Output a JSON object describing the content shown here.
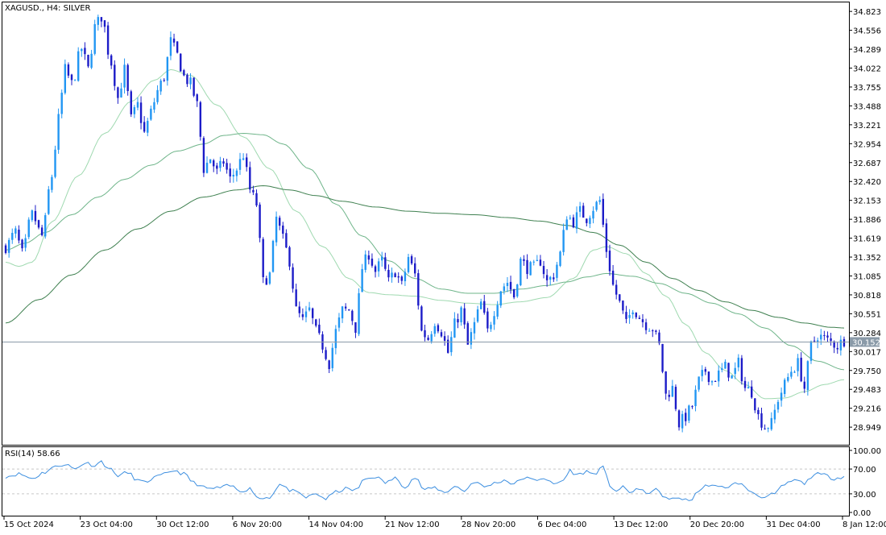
{
  "chart_data": {
    "type": "candlestick",
    "symbol_label": "XAGUSD., H4:  SILVER",
    "indicator_label": "RSI(14) 58.66",
    "current_price_label": "30.152",
    "price_axis_ticks": [
      "34.823",
      "34.556",
      "34.289",
      "34.022",
      "33.755",
      "33.488",
      "33.221",
      "32.954",
      "32.687",
      "32.420",
      "32.153",
      "31.886",
      "31.619",
      "31.352",
      "31.085",
      "30.818",
      "30.551",
      "30.284",
      "30.017",
      "29.750",
      "29.483",
      "29.216",
      "28.949"
    ],
    "rsi_axis_ticks": [
      "100.00",
      "70.00",
      "30.00",
      "0.00"
    ],
    "time_axis_labels": [
      "15 Oct 2024",
      "23 Oct 04:00",
      "30 Oct 12:00",
      "6 Nov 20:00",
      "14 Nov 04:00",
      "21 Nov 12:00",
      "28 Nov 20:00",
      "6 Dec 04:00",
      "13 Dec 12:00",
      "20 Dec 20:00",
      "31 Dec 04:00",
      "8 Jan 12:00"
    ],
    "ylim": [
      28.7,
      34.95
    ],
    "rsi_ylim": [
      0,
      100
    ],
    "rsi_levels": [
      70,
      30
    ],
    "price_anchors": [
      [
        0,
        31.5
      ],
      [
        3,
        31.7
      ],
      [
        5,
        31.4
      ],
      [
        8,
        31.95
      ],
      [
        11,
        31.65
      ],
      [
        14,
        32.5
      ],
      [
        16,
        33.3
      ],
      [
        18,
        34.0
      ],
      [
        20,
        33.8
      ],
      [
        23,
        34.3
      ],
      [
        25,
        34.0
      ],
      [
        27,
        34.6
      ],
      [
        29,
        34.75
      ],
      [
        32,
        34.1
      ],
      [
        34,
        33.6
      ],
      [
        36,
        34.0
      ],
      [
        38,
        33.3
      ],
      [
        40,
        33.5
      ],
      [
        42,
        33.1
      ],
      [
        44,
        33.4
      ],
      [
        46,
        33.7
      ],
      [
        48,
        33.9
      ],
      [
        50,
        34.4
      ],
      [
        52,
        34.2
      ],
      [
        54,
        33.9
      ],
      [
        56,
        33.8
      ],
      [
        58,
        33.5
      ],
      [
        60,
        32.6
      ],
      [
        62,
        32.75
      ],
      [
        64,
        32.55
      ],
      [
        66,
        32.7
      ],
      [
        68,
        32.45
      ],
      [
        70,
        32.6
      ],
      [
        72,
        32.8
      ],
      [
        74,
        32.3
      ],
      [
        76,
        32.1
      ],
      [
        78,
        31.0
      ],
      [
        80,
        31.1
      ],
      [
        82,
        31.9
      ],
      [
        84,
        31.6
      ],
      [
        86,
        31.3
      ],
      [
        88,
        30.6
      ],
      [
        90,
        30.45
      ],
      [
        92,
        30.6
      ],
      [
        94,
        30.3
      ],
      [
        96,
        30.1
      ],
      [
        98,
        29.85
      ],
      [
        100,
        30.3
      ],
      [
        102,
        30.6
      ],
      [
        104,
        30.6
      ],
      [
        106,
        30.35
      ],
      [
        108,
        31.2
      ],
      [
        110,
        31.4
      ],
      [
        112,
        31.15
      ],
      [
        114,
        31.3
      ],
      [
        116,
        31.0
      ],
      [
        118,
        31.15
      ],
      [
        120,
        30.95
      ],
      [
        122,
        31.35
      ],
      [
        124,
        31.1
      ],
      [
        126,
        30.3
      ],
      [
        128,
        30.2
      ],
      [
        130,
        30.45
      ],
      [
        132,
        30.3
      ],
      [
        134,
        30.0
      ],
      [
        136,
        30.4
      ],
      [
        138,
        30.6
      ],
      [
        140,
        30.1
      ],
      [
        142,
        30.4
      ],
      [
        144,
        30.7
      ],
      [
        146,
        30.3
      ],
      [
        148,
        30.6
      ],
      [
        150,
        30.9
      ],
      [
        152,
        31.0
      ],
      [
        154,
        30.8
      ],
      [
        156,
        31.3
      ],
      [
        158,
        31.2
      ],
      [
        160,
        31.2
      ],
      [
        162,
        31.3
      ],
      [
        164,
        31.0
      ],
      [
        166,
        31.1
      ],
      [
        168,
        31.4
      ],
      [
        170,
        31.95
      ],
      [
        172,
        31.85
      ],
      [
        174,
        32.0
      ],
      [
        176,
        31.9
      ],
      [
        178,
        32.05
      ],
      [
        180,
        32.15
      ],
      [
        182,
        31.45
      ],
      [
        184,
        30.95
      ],
      [
        186,
        30.7
      ],
      [
        188,
        30.4
      ],
      [
        190,
        30.65
      ],
      [
        192,
        30.5
      ],
      [
        194,
        30.4
      ],
      [
        196,
        30.35
      ],
      [
        198,
        30.1
      ],
      [
        200,
        29.4
      ],
      [
        202,
        29.5
      ],
      [
        204,
        29.0
      ],
      [
        206,
        29.1
      ],
      [
        208,
        29.25
      ],
      [
        210,
        29.6
      ],
      [
        212,
        29.75
      ],
      [
        214,
        29.6
      ],
      [
        216,
        29.7
      ],
      [
        218,
        29.8
      ],
      [
        220,
        29.65
      ],
      [
        222,
        29.85
      ],
      [
        224,
        29.5
      ],
      [
        226,
        29.45
      ],
      [
        228,
        29.1
      ],
      [
        230,
        28.95
      ],
      [
        232,
        29.0
      ],
      [
        234,
        29.35
      ],
      [
        236,
        29.55
      ],
      [
        238,
        29.75
      ],
      [
        240,
        29.85
      ],
      [
        242,
        29.5
      ],
      [
        244,
        30.1
      ],
      [
        246,
        30.25
      ],
      [
        248,
        30.2
      ],
      [
        250,
        30.15
      ],
      [
        252,
        30.1
      ],
      [
        254,
        30.18
      ]
    ],
    "rsi_anchors": [
      [
        0,
        58
      ],
      [
        4,
        62
      ],
      [
        8,
        55
      ],
      [
        12,
        65
      ],
      [
        14,
        72
      ],
      [
        18,
        78
      ],
      [
        21,
        70
      ],
      [
        24,
        80
      ],
      [
        27,
        76
      ],
      [
        29,
        82
      ],
      [
        31,
        72
      ],
      [
        34,
        60
      ],
      [
        37,
        64
      ],
      [
        40,
        52
      ],
      [
        42,
        48
      ],
      [
        45,
        56
      ],
      [
        48,
        61
      ],
      [
        51,
        68
      ],
      [
        54,
        62
      ],
      [
        57,
        48
      ],
      [
        60,
        40
      ],
      [
        62,
        38
      ],
      [
        65,
        40
      ],
      [
        68,
        43
      ],
      [
        71,
        35
      ],
      [
        74,
        38
      ],
      [
        77,
        22
      ],
      [
        80,
        25
      ],
      [
        83,
        45
      ],
      [
        86,
        36
      ],
      [
        89,
        30
      ],
      [
        91,
        24
      ],
      [
        94,
        30
      ],
      [
        97,
        22
      ],
      [
        100,
        33
      ],
      [
        103,
        38
      ],
      [
        106,
        36
      ],
      [
        109,
        54
      ],
      [
        112,
        58
      ],
      [
        115,
        48
      ],
      [
        118,
        55
      ],
      [
        121,
        42
      ],
      [
        124,
        56
      ],
      [
        127,
        36
      ],
      [
        130,
        40
      ],
      [
        133,
        32
      ],
      [
        136,
        42
      ],
      [
        139,
        35
      ],
      [
        142,
        50
      ],
      [
        145,
        41
      ],
      [
        148,
        47
      ],
      [
        151,
        52
      ],
      [
        154,
        46
      ],
      [
        157,
        56
      ],
      [
        160,
        52
      ],
      [
        163,
        56
      ],
      [
        166,
        45
      ],
      [
        169,
        52
      ],
      [
        171,
        68
      ],
      [
        173,
        60
      ],
      [
        176,
        66
      ],
      [
        178,
        62
      ],
      [
        181,
        72
      ],
      [
        183,
        44
      ],
      [
        185,
        35
      ],
      [
        187,
        40
      ],
      [
        189,
        32
      ],
      [
        191,
        38
      ],
      [
        194,
        32
      ],
      [
        197,
        36
      ],
      [
        199,
        28
      ],
      [
        201,
        20
      ],
      [
        204,
        24
      ],
      [
        207,
        18
      ],
      [
        210,
        35
      ],
      [
        213,
        45
      ],
      [
        216,
        40
      ],
      [
        219,
        42
      ],
      [
        222,
        48
      ],
      [
        225,
        36
      ],
      [
        228,
        28
      ],
      [
        230,
        24
      ],
      [
        233,
        30
      ],
      [
        236,
        45
      ],
      [
        239,
        52
      ],
      [
        242,
        47
      ],
      [
        245,
        62
      ],
      [
        248,
        60
      ],
      [
        251,
        55
      ],
      [
        254,
        58
      ]
    ],
    "ma_lines": [
      {
        "color": "#9fd9b0",
        "anchors": [
          [
            0,
            31.28
          ],
          [
            4,
            31.22
          ],
          [
            8,
            31.28
          ],
          [
            14,
            31.85
          ],
          [
            22,
            32.5
          ],
          [
            30,
            33.1
          ],
          [
            38,
            33.55
          ],
          [
            45,
            33.85
          ],
          [
            50,
            34.0
          ],
          [
            56,
            33.92
          ],
          [
            64,
            33.5
          ],
          [
            72,
            33.05
          ],
          [
            80,
            32.6
          ],
          [
            88,
            32.0
          ],
          [
            96,
            31.5
          ],
          [
            104,
            31.05
          ],
          [
            110,
            30.85
          ],
          [
            116,
            30.82
          ],
          [
            124,
            30.8
          ],
          [
            132,
            30.74
          ],
          [
            140,
            30.7
          ],
          [
            148,
            30.68
          ],
          [
            156,
            30.72
          ],
          [
            164,
            30.78
          ],
          [
            172,
            31.05
          ],
          [
            178,
            31.45
          ],
          [
            182,
            31.5
          ],
          [
            188,
            31.4
          ],
          [
            194,
            31.12
          ],
          [
            200,
            30.8
          ],
          [
            206,
            30.4
          ],
          [
            212,
            30.0
          ],
          [
            218,
            29.75
          ],
          [
            224,
            29.55
          ],
          [
            230,
            29.35
          ],
          [
            236,
            29.36
          ],
          [
            242,
            29.45
          ],
          [
            248,
            29.55
          ],
          [
            254,
            29.62
          ]
        ]
      },
      {
        "color": "#6fb58a",
        "anchors": [
          [
            0,
            31.45
          ],
          [
            6,
            31.55
          ],
          [
            12,
            31.7
          ],
          [
            20,
            31.95
          ],
          [
            28,
            32.2
          ],
          [
            36,
            32.45
          ],
          [
            44,
            32.65
          ],
          [
            52,
            32.85
          ],
          [
            60,
            32.95
          ],
          [
            66,
            33.07
          ],
          [
            72,
            33.1
          ],
          [
            78,
            33.08
          ],
          [
            84,
            32.95
          ],
          [
            92,
            32.6
          ],
          [
            100,
            32.1
          ],
          [
            108,
            31.65
          ],
          [
            116,
            31.3
          ],
          [
            124,
            31.05
          ],
          [
            132,
            30.9
          ],
          [
            140,
            30.84
          ],
          [
            148,
            30.84
          ],
          [
            156,
            30.9
          ],
          [
            164,
            30.95
          ],
          [
            170,
            31.0
          ],
          [
            176,
            31.07
          ],
          [
            182,
            31.12
          ],
          [
            190,
            31.08
          ],
          [
            198,
            30.98
          ],
          [
            206,
            30.84
          ],
          [
            214,
            30.7
          ],
          [
            222,
            30.55
          ],
          [
            230,
            30.35
          ],
          [
            238,
            30.1
          ],
          [
            246,
            29.88
          ],
          [
            254,
            29.76
          ]
        ]
      },
      {
        "color": "#3f8050",
        "anchors": [
          [
            0,
            30.42
          ],
          [
            10,
            30.75
          ],
          [
            20,
            31.1
          ],
          [
            30,
            31.45
          ],
          [
            40,
            31.75
          ],
          [
            50,
            32.0
          ],
          [
            60,
            32.2
          ],
          [
            70,
            32.3
          ],
          [
            78,
            32.36
          ],
          [
            86,
            32.3
          ],
          [
            94,
            32.22
          ],
          [
            102,
            32.14
          ],
          [
            112,
            32.06
          ],
          [
            122,
            32.0
          ],
          [
            132,
            31.97
          ],
          [
            142,
            31.95
          ],
          [
            152,
            31.91
          ],
          [
            162,
            31.86
          ],
          [
            170,
            31.8
          ],
          [
            178,
            31.7
          ],
          [
            186,
            31.52
          ],
          [
            194,
            31.28
          ],
          [
            202,
            31.05
          ],
          [
            210,
            30.88
          ],
          [
            218,
            30.72
          ],
          [
            226,
            30.6
          ],
          [
            234,
            30.5
          ],
          [
            242,
            30.42
          ],
          [
            250,
            30.36
          ],
          [
            254,
            30.35
          ]
        ]
      }
    ]
  }
}
